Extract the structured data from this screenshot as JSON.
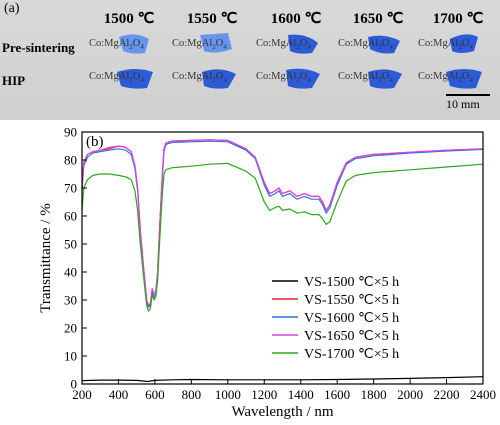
{
  "panel_a": {
    "label": "(a)",
    "temperatures": [
      "1500 ℃",
      "1550 ℃",
      "1600 ℃",
      "1650 ℃",
      "1700 ℃"
    ],
    "rows": [
      {
        "label": "Pre-sintering",
        "samples": [
          "Co:MgAl2O4",
          "Co:MgAl2O4",
          "Co:MgAl2O4",
          "Co:MgAl2O4",
          "Co:MgAl2O4"
        ]
      },
      {
        "label": "HIP",
        "samples": [
          "Co:MgAl2O4",
          "Co:MgAl2O4",
          "Co:MgAl2O4",
          "Co:MgAl2O4",
          "Co:MgAl2O4"
        ]
      }
    ],
    "scale_bar_label": "10 mm",
    "colors": {
      "chip_dark": "#1e4fd6",
      "chip_light": "#5d8ff0"
    }
  },
  "chart_data": {
    "type": "line",
    "panel_label": "(b)",
    "xlabel": "Wavelength / nm",
    "ylabel": "Transmittance / %",
    "xlim": [
      200,
      2400
    ],
    "ylim": [
      0,
      90
    ],
    "xticks": [
      200,
      400,
      600,
      800,
      1000,
      1200,
      1400,
      1600,
      1800,
      2000,
      2200,
      2400
    ],
    "yticks": [
      0,
      10,
      20,
      30,
      40,
      50,
      60,
      70,
      80,
      90
    ],
    "grid": false,
    "legend_position": "lower-right",
    "series": [
      {
        "name": "VS-1500 ℃×5 h",
        "color": "#000000",
        "x": [
          200,
          300,
          400,
          500,
          560,
          600,
          700,
          800,
          1000,
          1200,
          1400,
          1600,
          1800,
          2000,
          2200,
          2400
        ],
        "y": [
          1.2,
          1.4,
          1.4,
          1.3,
          0.9,
          1.3,
          1.5,
          1.6,
          1.5,
          1.5,
          1.5,
          1.6,
          1.8,
          2.0,
          2.3,
          2.6
        ]
      },
      {
        "name": "VS-1550 ℃×5 h",
        "color": "#e8202a",
        "x": [
          200,
          210,
          230,
          260,
          300,
          350,
          400,
          440,
          470,
          490,
          505,
          520,
          540,
          555,
          565,
          575,
          585,
          595,
          605,
          615,
          625,
          640,
          650,
          660,
          680,
          700,
          800,
          900,
          1000,
          1100,
          1150,
          1200,
          1230,
          1260,
          1280,
          1300,
          1340,
          1380,
          1420,
          1460,
          1500,
          1520,
          1540,
          1560,
          1600,
          1650,
          1700,
          1800,
          2000,
          2200,
          2400
        ],
        "y": [
          70,
          79,
          82,
          83,
          83.5,
          84,
          85,
          84.5,
          83,
          78,
          70,
          55,
          40,
          30,
          28,
          28.5,
          34,
          32,
          33,
          40,
          55,
          74,
          84,
          86,
          86.5,
          86.8,
          87,
          87.2,
          87,
          84,
          81,
          72,
          68,
          69,
          70,
          68,
          69,
          67,
          68,
          67,
          67,
          65,
          62,
          64,
          72,
          79,
          81,
          82,
          82.8,
          83.5,
          84
        ]
      },
      {
        "name": "VS-1600 ℃×5 h",
        "color": "#2f72d8",
        "x": [
          200,
          210,
          230,
          260,
          300,
          350,
          400,
          440,
          470,
          490,
          505,
          520,
          540,
          555,
          565,
          575,
          585,
          595,
          605,
          615,
          625,
          640,
          650,
          660,
          680,
          700,
          800,
          900,
          1000,
          1100,
          1150,
          1200,
          1230,
          1260,
          1280,
          1300,
          1340,
          1380,
          1420,
          1460,
          1500,
          1520,
          1540,
          1560,
          1600,
          1650,
          1700,
          1800,
          2000,
          2200,
          2400
        ],
        "y": [
          69,
          78,
          81,
          82.5,
          83,
          83.5,
          84,
          83.5,
          82,
          77,
          69,
          54,
          39,
          29,
          27.5,
          28,
          33,
          31,
          32,
          39,
          54,
          73,
          83,
          85.5,
          86,
          86.3,
          86.5,
          86.7,
          86.5,
          83.5,
          80.5,
          71,
          67,
          68,
          69,
          67,
          68,
          66,
          67,
          66,
          66,
          64,
          61,
          63,
          71,
          78.5,
          80.5,
          81.5,
          82.5,
          83.2,
          83.8
        ]
      },
      {
        "name": "VS-1650 ℃×5 h",
        "color": "#e040e0",
        "x": [
          200,
          210,
          230,
          260,
          300,
          350,
          400,
          440,
          470,
          490,
          505,
          520,
          540,
          555,
          565,
          575,
          585,
          595,
          605,
          615,
          625,
          640,
          650,
          660,
          680,
          700,
          800,
          900,
          1000,
          1100,
          1150,
          1200,
          1230,
          1260,
          1280,
          1300,
          1340,
          1380,
          1420,
          1460,
          1500,
          1520,
          1540,
          1560,
          1600,
          1650,
          1700,
          1800,
          2000,
          2200,
          2400
        ],
        "y": [
          70,
          79,
          82,
          83,
          83.5,
          84.5,
          85,
          84.5,
          83,
          78,
          70,
          55,
          40,
          30,
          28,
          29,
          34,
          32,
          33,
          40,
          55,
          74,
          84,
          86,
          86.5,
          86.8,
          87,
          87.2,
          87,
          84,
          81,
          72,
          68,
          69,
          70,
          68,
          69,
          67,
          68,
          67,
          67,
          65,
          62,
          64,
          72,
          79,
          81,
          82,
          82.8,
          83.5,
          84
        ]
      },
      {
        "name": "VS-1700 ℃×5 h",
        "color": "#2ea51f",
        "x": [
          200,
          210,
          230,
          260,
          300,
          350,
          400,
          440,
          470,
          490,
          505,
          520,
          540,
          555,
          565,
          575,
          585,
          595,
          605,
          615,
          625,
          640,
          650,
          660,
          680,
          700,
          800,
          900,
          1000,
          1100,
          1150,
          1200,
          1230,
          1260,
          1280,
          1300,
          1340,
          1380,
          1420,
          1460,
          1500,
          1520,
          1540,
          1560,
          1600,
          1650,
          1700,
          1800,
          2000,
          2200,
          2400
        ],
        "y": [
          62,
          70,
          73,
          74.5,
          75,
          75,
          74.5,
          74,
          73,
          69,
          62,
          50,
          37,
          28,
          26,
          27,
          32,
          30,
          31,
          37,
          50,
          67,
          75,
          76.5,
          77,
          77.3,
          77.8,
          78.5,
          78.8,
          76,
          73.5,
          65,
          62,
          63,
          63.5,
          62,
          62.5,
          61,
          61.5,
          60.5,
          60.5,
          59,
          57,
          58,
          65,
          72.5,
          74.5,
          75.5,
          76.5,
          77.5,
          78.5
        ]
      }
    ]
  }
}
